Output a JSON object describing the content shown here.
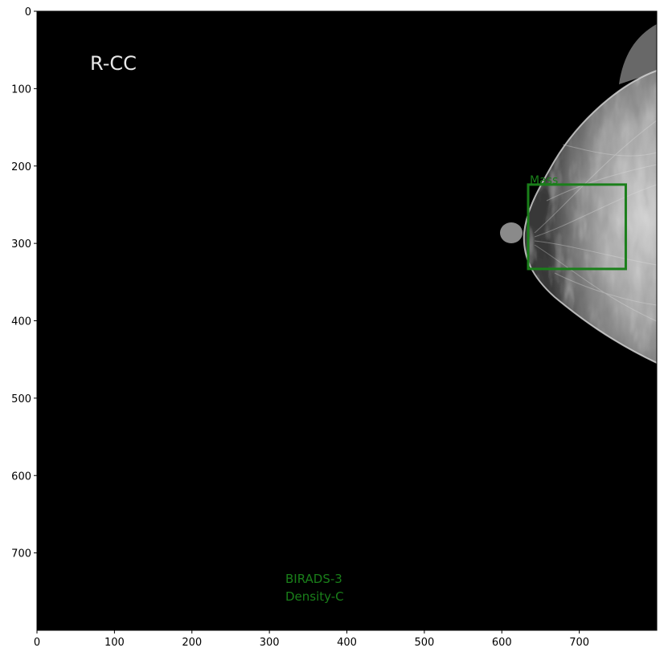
{
  "image": {
    "view_label": "R-CC",
    "background_color": "#000000",
    "tissue_color": "#9a9a9a"
  },
  "annotation": {
    "label": "Mass",
    "color": "#1a7f1a",
    "box_data": {
      "x0": 634,
      "y0": 224,
      "x1": 760,
      "y1": 333
    }
  },
  "findings": {
    "birads": "BIRADS-3",
    "density": "Density-C",
    "color": "#1a7f1a"
  },
  "axes": {
    "x_range": [
      0,
      800
    ],
    "y_range": [
      0,
      800
    ],
    "y_inverted": true,
    "x_ticks": [
      "0",
      "100",
      "200",
      "300",
      "400",
      "500",
      "600",
      "700"
    ],
    "y_ticks": [
      "0",
      "100",
      "200",
      "300",
      "400",
      "500",
      "600",
      "700"
    ]
  }
}
